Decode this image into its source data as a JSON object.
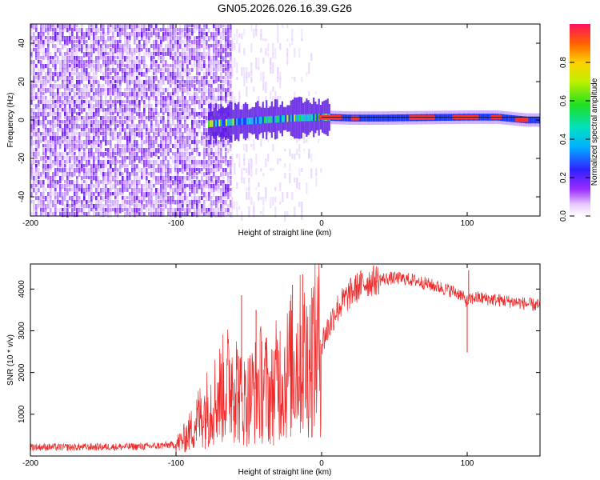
{
  "title": "GN05.2026.026.16.39.G26",
  "chart_data": [
    {
      "type": "heatmap",
      "name": "spectrogram",
      "xlabel": "Height of straight line (km)",
      "ylabel": "Frequency (Hz)",
      "xlim": [
        -200,
        150
      ],
      "ylim": [
        -50,
        50
      ],
      "xticks": [
        -200,
        -100,
        0,
        100
      ],
      "xtick_labels": [
        "-200",
        "-100",
        "0",
        "100"
      ],
      "yticks": [
        -40,
        -20,
        0,
        20,
        40
      ],
      "ytick_labels": [
        "-40",
        "-20",
        "0",
        "20",
        "40"
      ],
      "regions": [
        {
          "label": "broadband noise",
          "x_range": [
            -200,
            -62
          ],
          "freq_range": [
            -50,
            50
          ]
        },
        {
          "label": "sparse noise streaks",
          "x_range": [
            -62,
            0
          ],
          "freq_range": [
            -50,
            50
          ]
        },
        {
          "label": "carrier line",
          "x_range": [
            -78,
            150
          ],
          "freq_center": 1,
          "freq_halfwidth": 3
        }
      ],
      "carrier_ridge": [
        {
          "x": -78,
          "f": -2
        },
        {
          "x": -60,
          "f": -1
        },
        {
          "x": -40,
          "f": 0
        },
        {
          "x": -20,
          "f": 1
        },
        {
          "x": 0,
          "f": 1.5
        },
        {
          "x": 20,
          "f": 1
        },
        {
          "x": 40,
          "f": 1
        },
        {
          "x": 100,
          "f": 1.5
        },
        {
          "x": 120,
          "f": 1.5
        },
        {
          "x": 140,
          "f": 0
        },
        {
          "x": 150,
          "f": 0
        }
      ]
    },
    {
      "type": "colorbar",
      "name": "amplitude-colorbar",
      "label": "Normalized spectral amplitude",
      "range": [
        0,
        1
      ],
      "ticks": [
        0.0,
        0.2,
        0.4,
        0.6,
        0.8
      ],
      "tick_labels": [
        "0.0",
        "0.2",
        "0.4",
        "0.6",
        "0.8"
      ]
    },
    {
      "type": "line",
      "name": "snr-plot",
      "xlabel": "Height of straight line (km)",
      "ylabel": "SNR (10 * v/v)",
      "xlim": [
        -200,
        150
      ],
      "ylim": [
        0,
        4600
      ],
      "xticks": [
        -200,
        -100,
        0,
        100
      ],
      "xtick_labels": [
        "-200",
        "-100",
        "0",
        "100"
      ],
      "yticks": [
        1000,
        2000,
        3000,
        4000
      ],
      "ytick_labels": [
        "1000",
        "2000",
        "3000",
        "4000"
      ],
      "series": [
        {
          "name": "SNR",
          "color": "#ee2a2a",
          "x": [
            -200,
            -180,
            -160,
            -140,
            -120,
            -100,
            -95,
            -90,
            -85,
            -80,
            -75,
            -70,
            -65,
            -60,
            -55,
            -50,
            -45,
            -40,
            -35,
            -30,
            -25,
            -20,
            -15,
            -10,
            -5,
            0,
            5,
            10,
            15,
            20,
            25,
            30,
            35,
            40,
            45,
            50,
            55,
            60,
            65,
            70,
            75,
            80,
            85,
            90,
            95,
            100,
            105,
            110,
            115,
            120,
            125,
            130,
            135,
            140,
            145,
            150
          ],
          "y": [
            220,
            210,
            215,
            220,
            230,
            270,
            400,
            600,
            900,
            1100,
            1300,
            1500,
            1700,
            1900,
            1300,
            1400,
            1600,
            1800,
            1400,
            1900,
            1900,
            2200,
            2400,
            2300,
            2600,
            2700,
            3100,
            3500,
            3700,
            3900,
            4050,
            4150,
            4200,
            4230,
            4250,
            4260,
            4250,
            4230,
            4200,
            4150,
            4100,
            4050,
            4000,
            3950,
            3880,
            3700,
            3800,
            3780,
            3760,
            3740,
            3720,
            3700,
            3680,
            3650,
            3620,
            3600
          ],
          "spikes": [
            {
              "x": -55,
              "y": 3850
            },
            {
              "x": -45,
              "y": 3500
            },
            {
              "x": -20,
              "y": 4100
            },
            {
              "x": -13,
              "y": 4350
            },
            {
              "x": -10,
              "y": 900
            },
            {
              "x": 100,
              "y": 2480
            },
            {
              "x": 101,
              "y": 4450
            }
          ]
        }
      ]
    }
  ]
}
